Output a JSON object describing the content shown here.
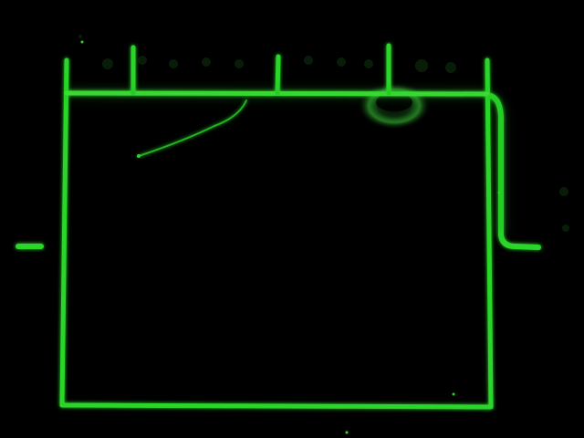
{
  "image": {
    "description_free": true,
    "background_color": "#000000",
    "glow_color": "#2bd62b",
    "bright_color": "#6dff5a",
    "dim_color": "#0f5a10"
  }
}
